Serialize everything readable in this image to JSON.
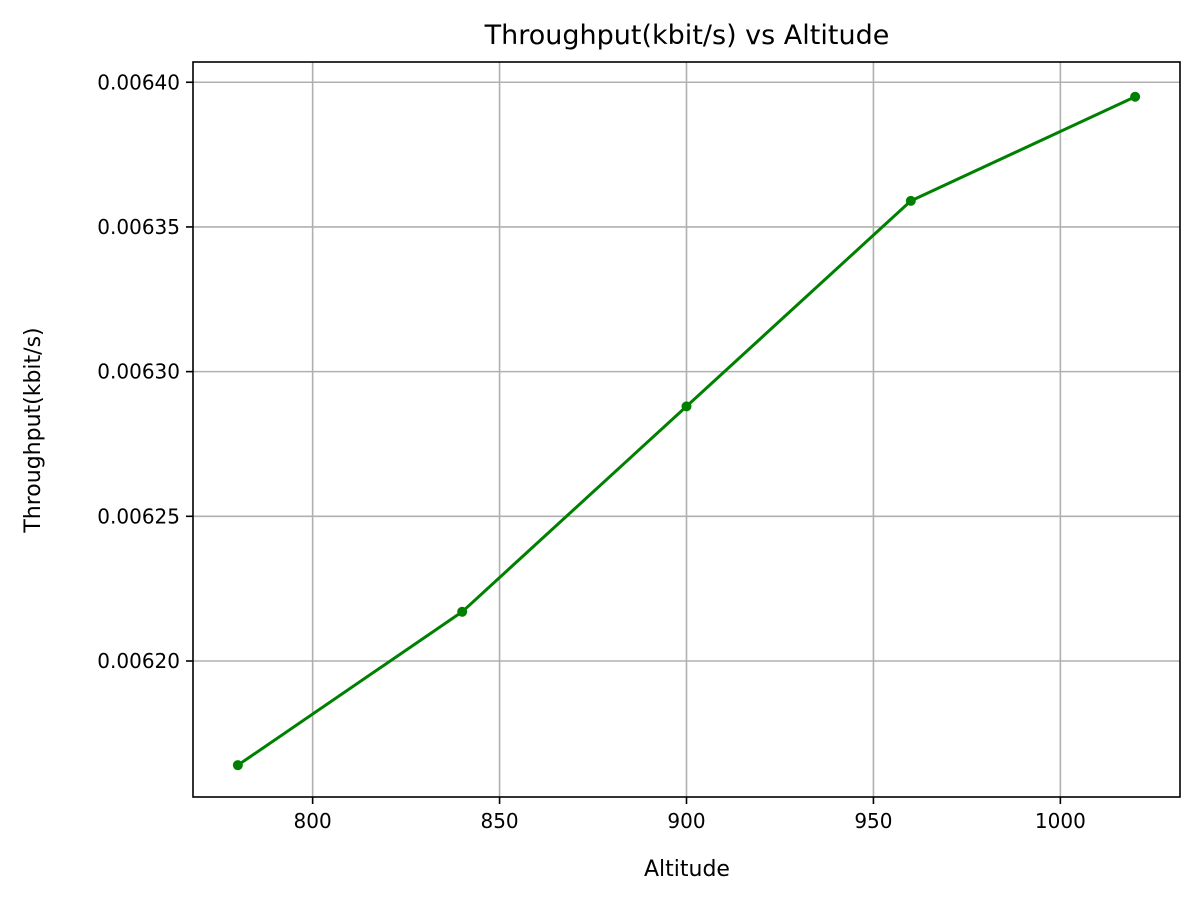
{
  "chart_data": {
    "type": "line",
    "title": "Throughput(kbit/s) vs Altitude",
    "xlabel": "Altitude",
    "ylabel": "Throughput(kbit/s)",
    "xlim": [
      768,
      1032
    ],
    "ylim": [
      0.006153,
      0.006407
    ],
    "xticks": [
      800,
      850,
      900,
      950,
      1000
    ],
    "xtick_labels": [
      "800",
      "850",
      "900",
      "950",
      "1000"
    ],
    "yticks": [
      0.0062,
      0.00625,
      0.0063,
      0.00635,
      0.0064
    ],
    "ytick_labels": [
      "0.00620",
      "0.00625",
      "0.00630",
      "0.00635",
      "0.00640"
    ],
    "grid": true,
    "series": [
      {
        "x": [
          780,
          840,
          900,
          960,
          1020
        ],
        "y": [
          0.006164,
          0.006217,
          0.006288,
          0.006359,
          0.006395
        ],
        "color": "#008000",
        "marker": "circle"
      }
    ]
  }
}
